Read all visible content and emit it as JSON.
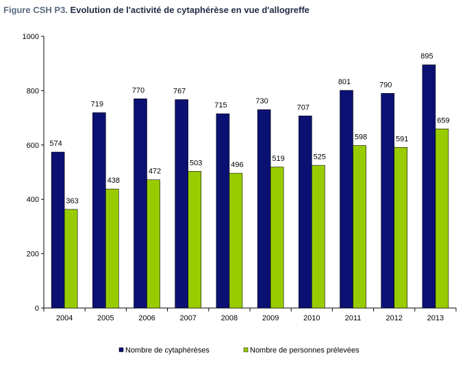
{
  "title_prefix": "Figure CSH P3.",
  "title_main": "Evolution de l'activité de cytaphérèse en vue d'allogreffe",
  "chart_data": {
    "type": "bar",
    "categories": [
      "2004",
      "2005",
      "2006",
      "2007",
      "2008",
      "2009",
      "2010",
      "2011",
      "2012",
      "2013"
    ],
    "series": [
      {
        "name": "Nombre de cytaphérèses",
        "color": "#0b1173",
        "values": [
          574,
          719,
          770,
          767,
          715,
          730,
          707,
          801,
          790,
          895
        ]
      },
      {
        "name": "Nombre de personnes prélevées",
        "color": "#99cc00",
        "values": [
          363,
          438,
          472,
          503,
          496,
          519,
          525,
          598,
          591,
          659
        ]
      }
    ],
    "ylim": [
      0,
      1000
    ],
    "yticks": [
      0,
      200,
      400,
      600,
      800,
      1000
    ],
    "grid": false,
    "legend_position": "bottom"
  }
}
